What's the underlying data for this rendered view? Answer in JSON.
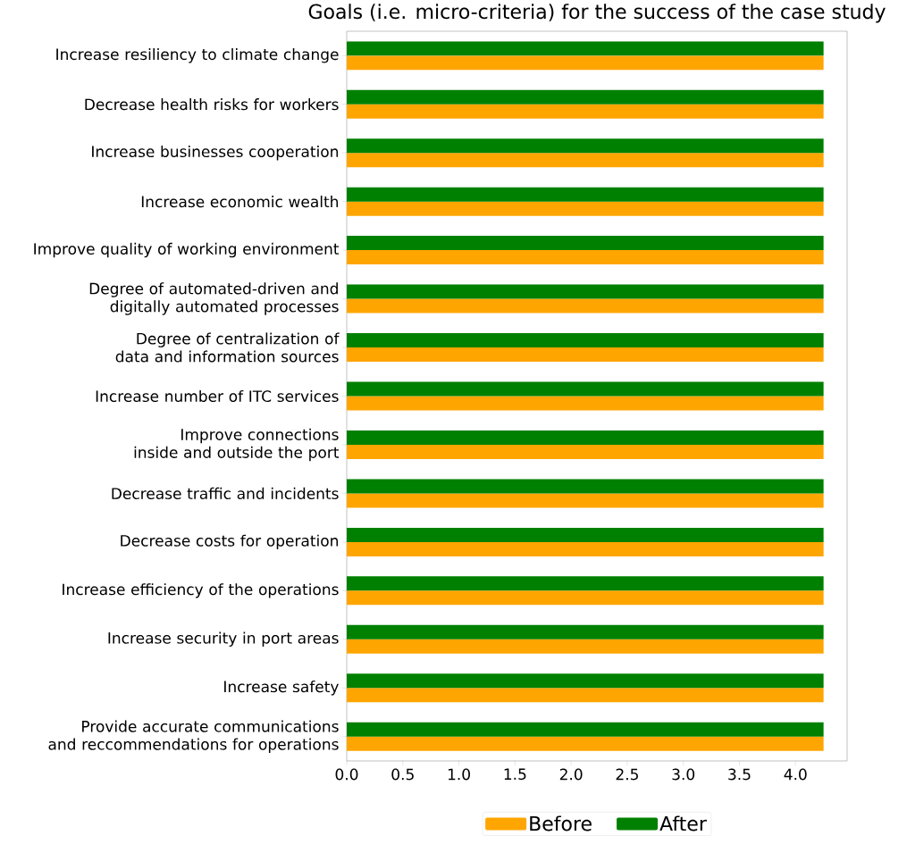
{
  "chart_data": {
    "type": "bar",
    "orientation": "horizontal",
    "title": "Goals (i.e. micro-criteria) for the success of the case study",
    "categories": [
      "Increase resiliency to climate change",
      "Decrease health risks for workers",
      "Increase businesses cooperation",
      "Increase economic wealth",
      "Improve quality of working environment",
      "Degree of automated-driven and digitally automated processes",
      "Degree of centralization of data and information sources",
      "Increase number of ITC services",
      "Improve connections inside and outside the port",
      "Decrease traffic and incidents",
      "Decrease costs for operation",
      "Increase efficiency of the operations",
      "Increase security in port areas",
      "Increase safety",
      "Provide accurate communications and reccommendations for operations"
    ],
    "series": [
      {
        "name": "Before",
        "color": "#ffa500",
        "values": [
          4.25,
          4.25,
          4.25,
          4.25,
          4.25,
          4.25,
          4.25,
          4.25,
          4.25,
          4.25,
          4.25,
          4.25,
          4.25,
          4.25,
          4.25
        ]
      },
      {
        "name": "After",
        "color": "#008000",
        "values": [
          4.25,
          4.25,
          4.25,
          4.25,
          4.25,
          4.25,
          4.25,
          4.25,
          4.25,
          4.25,
          4.25,
          4.25,
          4.25,
          4.25,
          4.25
        ]
      }
    ],
    "xlim": [
      0,
      4.46
    ],
    "xticks": [
      {
        "value": 0,
        "label": "0.0"
      },
      {
        "value": 0.5,
        "label": "0.5"
      },
      {
        "value": 1,
        "label": "1.0"
      },
      {
        "value": 1.5,
        "label": "1.5"
      },
      {
        "value": 2,
        "label": "2.0"
      },
      {
        "value": 2.5,
        "label": "2.5"
      },
      {
        "value": 3,
        "label": "3.0"
      },
      {
        "value": 3.5,
        "label": "3.5"
      },
      {
        "value": 4,
        "label": "4.0"
      }
    ],
    "legend": "bottom"
  }
}
